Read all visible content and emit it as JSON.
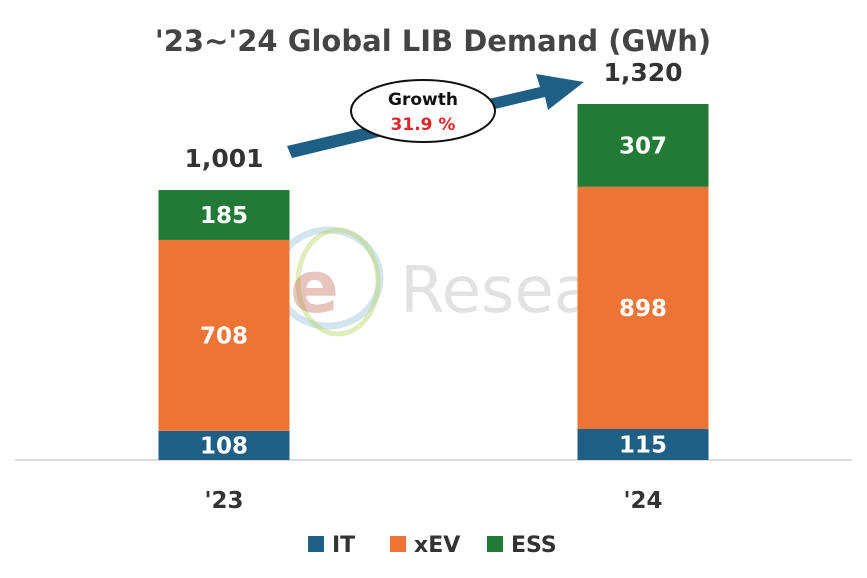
{
  "chart_data": {
    "type": "bar",
    "stacked": true,
    "title": "'23~'24 Global LIB Demand (GWh)",
    "categories": [
      "'23",
      "'24"
    ],
    "series": [
      {
        "name": "IT",
        "values": [
          108,
          115
        ],
        "color": "#1f5f86"
      },
      {
        "name": "xEV",
        "values": [
          708,
          898
        ],
        "color": "#ed7434"
      },
      {
        "name": "ESS",
        "values": [
          185,
          307
        ],
        "color": "#217a35"
      }
    ],
    "totals": [
      "1,001",
      "1,320"
    ],
    "ylim": [
      0,
      1320
    ],
    "grid": false,
    "legend_position": "bottom",
    "annotation": {
      "label": "Growth",
      "value": "31.9 %",
      "value_color": "#e0262b",
      "arrow_color": "#1f5f86"
    }
  },
  "watermark": {
    "logo": "SNe",
    "text": "Research"
  }
}
